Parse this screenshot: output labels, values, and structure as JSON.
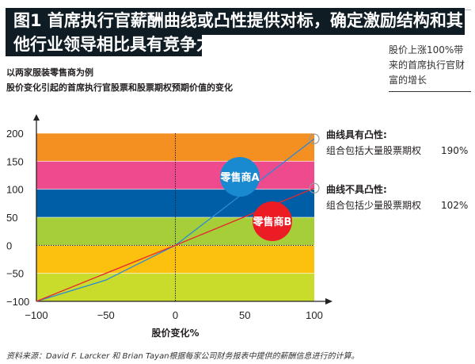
{
  "title": {
    "line1": "图1 首席执行官薪酬曲线或凸性提供对标，确定激励结构和其",
    "line2": "他行业领导相比具有竞争力"
  },
  "subtitle1": "以两家服装零售商为例",
  "subtitle2": "股价变化引起的首席执行官股票和股票期权预期价值的变化",
  "side_note": "股价上涨100%带来的首席执行官财富的增长",
  "annotations": [
    {
      "heading": "曲线具有凸性:",
      "text": "组合包括大量股票期权",
      "value": "190%"
    },
    {
      "heading": "曲线不具凸性:",
      "text": "组合包括少量股票期权",
      "value": "102%"
    }
  ],
  "source": "资料来源：David F. Larcker 和 Brian Tayan根据每家公司财务报表中提供的薪酬信息进行的计算。",
  "chart_data": {
    "type": "line",
    "xlabel": "股价变化%",
    "ylabel": "",
    "xlim": [
      -100,
      100
    ],
    "ylim": [
      -100,
      200
    ],
    "xticks": [
      "−100",
      "−50",
      "0",
      "50",
      "100"
    ],
    "yticks": [
      "200",
      "150",
      "100",
      "50",
      "0",
      "−50",
      "−100"
    ],
    "bands": [
      {
        "from": 150,
        "to": 200,
        "color": "#f39021"
      },
      {
        "from": 100,
        "to": 150,
        "color": "#ee4b8e"
      },
      {
        "from": 50,
        "to": 100,
        "color": "#005ea6"
      },
      {
        "from": 0,
        "to": 50,
        "color": "#a6ce39"
      },
      {
        "from": -50,
        "to": 0,
        "color": "#fcc00f"
      },
      {
        "from": -100,
        "to": -50,
        "color": "#c9dc2c"
      }
    ],
    "series": [
      {
        "name": "零售商A",
        "color": "#2a8ad4",
        "badge_color": "#1a8ad0",
        "x": [
          -100,
          -50,
          0,
          100
        ],
        "y": [
          -100,
          -62,
          0,
          190
        ]
      },
      {
        "name": "零售商B",
        "color": "#e8262d",
        "badge_color": "#ec1c24",
        "x": [
          -100,
          0,
          100
        ],
        "y": [
          -100,
          0,
          102
        ]
      }
    ]
  }
}
